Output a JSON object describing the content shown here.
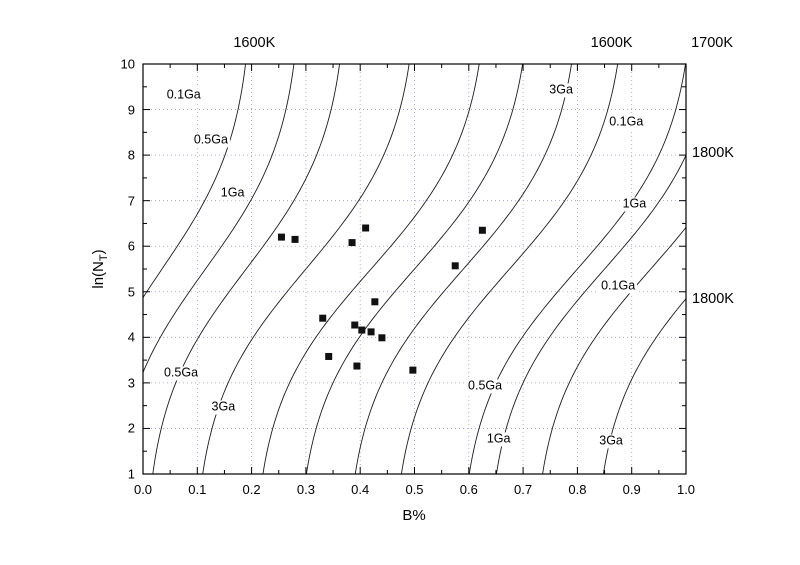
{
  "figure": {
    "background": "#ffffff",
    "axis_color": "#000000",
    "grid_color": "#9a9ec8",
    "curve_color": "#1c1c1c",
    "point_color": "#111111"
  },
  "chart_data": {
    "type": "scatter",
    "title": "",
    "xlabel": "B%",
    "ylabel": "ln(NT)",
    "ylabel_parts": {
      "pre": "ln(N",
      "sub": "T",
      "post": ")"
    },
    "xlim": [
      0.0,
      1.0
    ],
    "ylim": [
      1,
      10
    ],
    "grid": "dotted",
    "legend_position": "none",
    "x_ticks": [
      0.0,
      0.1,
      0.2,
      0.3,
      0.4,
      0.5,
      0.6,
      0.7,
      0.8,
      0.9,
      1.0
    ],
    "x_tick_labels": [
      "0.0",
      "0.1",
      "0.2",
      "0.3",
      "0.4",
      "0.5",
      "0.6",
      "0.7",
      "0.8",
      "0.9",
      "1.0"
    ],
    "y_ticks": [
      1,
      2,
      3,
      4,
      5,
      6,
      7,
      8,
      9,
      10
    ],
    "y_tick_labels": [
      "1",
      "2",
      "3",
      "4",
      "5",
      "6",
      "7",
      "8",
      "9",
      "10"
    ],
    "scatter_points": [
      {
        "x": 0.255,
        "y": 6.2
      },
      {
        "x": 0.28,
        "y": 6.15
      },
      {
        "x": 0.385,
        "y": 6.08
      },
      {
        "x": 0.41,
        "y": 6.4
      },
      {
        "x": 0.625,
        "y": 6.35
      },
      {
        "x": 0.575,
        "y": 5.57
      },
      {
        "x": 0.427,
        "y": 4.78
      },
      {
        "x": 0.331,
        "y": 4.42
      },
      {
        "x": 0.39,
        "y": 4.27
      },
      {
        "x": 0.403,
        "y": 4.16
      },
      {
        "x": 0.42,
        "y": 4.12
      },
      {
        "x": 0.44,
        "y": 3.99
      },
      {
        "x": 0.342,
        "y": 3.58
      },
      {
        "x": 0.394,
        "y": 3.37
      },
      {
        "x": 0.497,
        "y": 3.28
      }
    ],
    "curves": [
      {
        "xc": 0.035,
        "w": 0.34,
        "s": 1.5
      },
      {
        "xc": 0.115,
        "w": 0.36,
        "s": 1.5
      },
      {
        "xc": 0.19,
        "w": 0.38,
        "s": 1.5
      },
      {
        "xc": 0.3,
        "w": 0.42,
        "s": 1.5
      },
      {
        "xc": 0.42,
        "w": 0.44,
        "s": 1.5
      },
      {
        "xc": 0.5,
        "w": 0.44,
        "s": 1.5
      },
      {
        "xc": 0.59,
        "w": 0.44,
        "s": 1.5
      },
      {
        "xc": 0.675,
        "w": 0.44,
        "s": 1.5
      },
      {
        "xc": 0.8,
        "w": 0.44,
        "s": 1.5
      },
      {
        "xc": 0.85,
        "w": 0.44,
        "s": 1.5
      },
      {
        "xc": 0.935,
        "w": 0.44,
        "s": 1.5
      },
      {
        "xc": 1.047,
        "w": 0.44,
        "s": 1.5
      }
    ],
    "curve_labels": [
      {
        "text": "0.1Ga",
        "x": 0.075,
        "y": 9.3
      },
      {
        "text": "0.5Ga",
        "x": 0.125,
        "y": 8.3
      },
      {
        "text": "1Ga",
        "x": 0.165,
        "y": 7.15
      },
      {
        "text": "0.5Ga",
        "x": 0.07,
        "y": 3.2
      },
      {
        "text": "3Ga",
        "x": 0.148,
        "y": 2.45
      },
      {
        "text": "3Ga",
        "x": 0.77,
        "y": 9.4
      },
      {
        "text": "0.1Ga",
        "x": 0.89,
        "y": 8.7
      },
      {
        "text": "1Ga",
        "x": 0.905,
        "y": 6.9
      },
      {
        "text": "0.1Ga",
        "x": 0.875,
        "y": 5.1
      },
      {
        "text": "0.5Ga",
        "x": 0.63,
        "y": 2.9
      },
      {
        "text": "1Ga",
        "x": 0.655,
        "y": 1.75
      },
      {
        "text": "3Ga",
        "x": 0.862,
        "y": 1.7
      }
    ],
    "top_labels": [
      {
        "text": "1600K",
        "x": 0.205
      },
      {
        "text": "1600K",
        "x": 0.863
      },
      {
        "text": "1700K",
        "x": 1.048
      }
    ],
    "right_labels": [
      {
        "text": "1800K",
        "y": 8.05
      },
      {
        "text": "1800K",
        "y": 4.85
      }
    ]
  }
}
